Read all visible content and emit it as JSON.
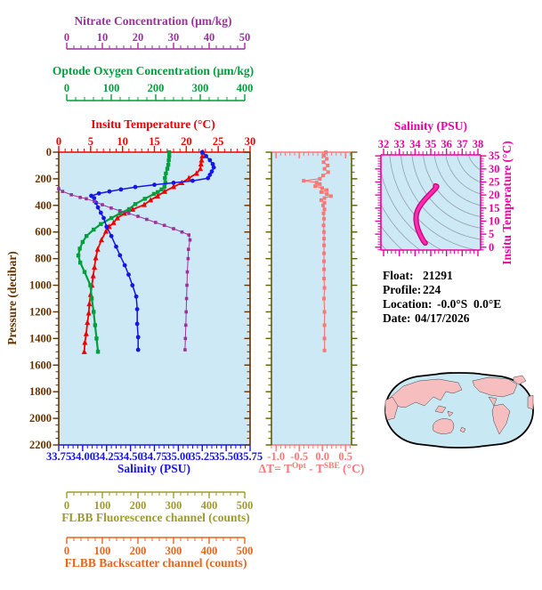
{
  "colors": {
    "nitrate": "#993399",
    "oxygen": "#009E3C",
    "temperature": "#EE0000",
    "pressure": "#663300",
    "salinity": "#1515E6",
    "fluorescence": "#9C9C2E",
    "backscatter": "#E4661E",
    "delta": "#F87878",
    "delta_frame": "#606000",
    "ts": "#EE00A0",
    "ts_curve": "#FF2BB0",
    "ts_curve_edge": "#C8007E",
    "plot_background": "#CDE9F6",
    "contour": "#8FA0A8",
    "map_ocean": "#C8E8F4",
    "map_land": "#F6BEBE",
    "map_outline": "#000000",
    "info_text": "#000000"
  },
  "labels": {
    "nitrate_title": "Nitrate Concentration (μm/kg)",
    "oxygen_title": "Optode Oxygen Concentration (μm/kg)",
    "temperature_title": "Insitu Temperature (°C)",
    "pressure_title": "Pressure (decibar)",
    "salinity_title": "Salinity (PSU)",
    "fluorescence_title": "FLBB Fluorescence channel (counts)",
    "backscatter_title": "FLBB Backscatter channel (counts)",
    "ts_title": "Salinity (PSU)",
    "ts_right_title": "Insitu Temperature (°C)",
    "delta_parts": {
      "p1": "ΔT= T",
      "sup1": "Opt",
      "p2": " - T",
      "sup2": "SBE",
      "p3": " (°C)"
    }
  },
  "info": {
    "float": {
      "label": "Float:",
      "value": "21291"
    },
    "profile": {
      "label": "Profile:",
      "value": "224"
    },
    "location": {
      "label": "Location:",
      "value": "-0.0°S  0.0°E"
    },
    "date": {
      "label": "Date:",
      "value": "04/17/2026"
    }
  },
  "chart_data": [
    {
      "id": "profile-plot",
      "type": "line",
      "y_axis": {
        "label": "Pressure (decibar)",
        "range": [
          0,
          2200
        ],
        "ticks": [
          0,
          200,
          400,
          600,
          800,
          1000,
          1200,
          1400,
          1600,
          1800,
          2000,
          2200
        ],
        "minor_step": 50
      },
      "x_axes": [
        {
          "key": "nitrate",
          "label": "Nitrate Concentration (μm/kg)",
          "range": [
            0,
            50
          ],
          "ticks": [
            "0",
            "10",
            "20",
            "30",
            "40",
            "50"
          ],
          "minor_step": 2,
          "color": "#993399"
        },
        {
          "key": "oxygen",
          "label": "Optode Oxygen Concentration (μm/kg)",
          "range": [
            0,
            400
          ],
          "ticks": [
            "0",
            "100",
            "200",
            "300",
            "400"
          ],
          "minor_step": 20,
          "color": "#009E3C"
        },
        {
          "key": "temperature",
          "label": "Insitu Temperature (°C)",
          "range": [
            0,
            30
          ],
          "ticks": [
            "0",
            "5",
            "10",
            "15",
            "20",
            "25",
            "30"
          ],
          "minor_step": 1,
          "color": "#EE0000"
        },
        {
          "key": "salinity",
          "label": "Salinity (PSU)",
          "range": [
            33.75,
            35.75
          ],
          "ticks": [
            "33.75",
            "34.00",
            "34.25",
            "34.50",
            "34.75",
            "35.00",
            "35.25",
            "35.50",
            "35.75"
          ],
          "minor_step": 0.05,
          "color": "#1515E6"
        },
        {
          "key": "fluorescence",
          "label": "FLBB Fluorescence channel (counts)",
          "range": [
            0,
            500
          ],
          "ticks": [
            "0",
            "100",
            "200",
            "300",
            "400",
            "500"
          ],
          "minor_step": 20,
          "color": "#9C9C2E"
        },
        {
          "key": "backscatter",
          "label": "FLBB Backscatter channel (counts)",
          "range": [
            0,
            500
          ],
          "ticks": [
            "0",
            "100",
            "200",
            "300",
            "400",
            "500"
          ],
          "minor_step": 20,
          "color": "#E4661E"
        }
      ],
      "series": [
        {
          "axis": "temperature",
          "marker": "triangle",
          "points": [
            [
              0,
              22.6
            ],
            [
              30,
              22.5
            ],
            [
              60,
              22.4
            ],
            [
              90,
              22.3
            ],
            [
              125,
              22.2
            ],
            [
              160,
              21.6
            ],
            [
              195,
              20.4
            ],
            [
              230,
              19.3
            ],
            [
              260,
              18.0
            ],
            [
              295,
              16.6
            ],
            [
              330,
              15.5
            ],
            [
              360,
              14.4
            ],
            [
              395,
              13.4
            ],
            [
              430,
              11.6
            ],
            [
              460,
              10.3
            ],
            [
              495,
              9.2
            ],
            [
              530,
              8.6
            ],
            [
              560,
              7.9
            ],
            [
              595,
              7.4
            ],
            [
              660,
              6.7
            ],
            [
              730,
              6.1
            ],
            [
              795,
              5.8
            ],
            [
              865,
              5.6
            ],
            [
              930,
              5.4
            ],
            [
              1000,
              5.2
            ],
            [
              1070,
              5.0
            ],
            [
              1140,
              4.8
            ],
            [
              1210,
              4.7
            ],
            [
              1280,
              4.5
            ],
            [
              1365,
              4.3
            ],
            [
              1430,
              4.1
            ],
            [
              1500,
              4.0
            ]
          ]
        },
        {
          "axis": "oxygen",
          "marker": "square",
          "points": [
            [
              0,
              231
            ],
            [
              30,
              231
            ],
            [
              60,
              230
            ],
            [
              95,
              229
            ],
            [
              125,
              227
            ],
            [
              160,
              224
            ],
            [
              195,
              222
            ],
            [
              230,
              223
            ],
            [
              260,
              221
            ],
            [
              280,
              215
            ],
            [
              300,
              207
            ],
            [
              314,
              199
            ],
            [
              350,
              180
            ],
            [
              390,
              160
            ],
            [
              428,
              147
            ],
            [
              460,
              128
            ],
            [
              495,
              110
            ],
            [
              540,
              88
            ],
            [
              582,
              73
            ],
            [
              630,
              58
            ],
            [
              675,
              50
            ],
            [
              725,
              44
            ],
            [
              776,
              41
            ],
            [
              830,
              45
            ],
            [
              900,
              54
            ],
            [
              1000,
              66
            ],
            [
              1100,
              69
            ],
            [
              1200,
              73
            ],
            [
              1300,
              76
            ],
            [
              1400,
              79
            ],
            [
              1500,
              82
            ]
          ]
        },
        {
          "axis": "salinity",
          "marker": "circle",
          "points": [
            [
              0,
              35.25
            ],
            [
              30,
              35.29
            ],
            [
              60,
              35.33
            ],
            [
              90,
              35.36
            ],
            [
              115,
              35.37
            ],
            [
              145,
              35.35
            ],
            [
              170,
              35.33
            ],
            [
              195,
              35.31
            ],
            [
              215,
              35.15
            ],
            [
              230,
              34.95
            ],
            [
              245,
              34.75
            ],
            [
              262,
              34.55
            ],
            [
              280,
              34.4
            ],
            [
              295,
              34.28
            ],
            [
              310,
              34.17
            ],
            [
              328,
              34.09
            ],
            [
              345,
              34.12
            ],
            [
              380,
              34.14
            ],
            [
              415,
              34.16
            ],
            [
              455,
              34.19
            ],
            [
              495,
              34.22
            ],
            [
              560,
              34.25
            ],
            [
              630,
              34.3
            ],
            [
              710,
              34.35
            ],
            [
              775,
              34.39
            ],
            [
              850,
              34.44
            ],
            [
              920,
              34.48
            ],
            [
              1000,
              34.52
            ],
            [
              1085,
              34.56
            ],
            [
              1180,
              34.57
            ],
            [
              1290,
              34.57
            ],
            [
              1390,
              34.58
            ],
            [
              1485,
              34.58
            ]
          ]
        },
        {
          "axis": "nitrate",
          "marker": "square",
          "points": [
            [
              275,
              0
            ],
            [
              295,
              1
            ],
            [
              320,
              3.3
            ],
            [
              340,
              5.6
            ],
            [
              350,
              7.2
            ],
            [
              370,
              9.3
            ],
            [
              395,
              11.4
            ],
            [
              420,
              13.7
            ],
            [
              440,
              16
            ],
            [
              460,
              18.3
            ],
            [
              482,
              20.7
            ],
            [
              505,
              23
            ],
            [
              528,
              25.3
            ],
            [
              550,
              27.6
            ],
            [
              575,
              30
            ],
            [
              600,
              32.2
            ],
            [
              622,
              34
            ],
            [
              660,
              34.3
            ],
            [
              730,
              33.9
            ],
            [
              800,
              33.8
            ],
            [
              900,
              33.6
            ],
            [
              1000,
              33.5
            ],
            [
              1100,
              33.4
            ],
            [
              1200,
              33.3
            ],
            [
              1300,
              33.2
            ],
            [
              1400,
              33.1
            ],
            [
              1485,
              33.0
            ]
          ]
        }
      ]
    },
    {
      "id": "delta-plot",
      "type": "line",
      "x_axis": {
        "label": "ΔT= T^Opt - T^SBE (°C)",
        "range": [
          -1.1,
          0.63
        ],
        "ticks": [
          "-1.0",
          "-0.5",
          "0.0",
          "0.5"
        ],
        "minor_step": 0.1,
        "color": "#F87878"
      },
      "y_axis": {
        "label": "",
        "range": [
          0,
          2200
        ],
        "minor_step": 50,
        "major_step": 200,
        "color": "#606000"
      },
      "series": [
        {
          "marker": "square",
          "color": "#F87878",
          "points": [
            [
              0,
              0.08
            ],
            [
              25,
              0.04
            ],
            [
              50,
              0.1
            ],
            [
              75,
              0.03
            ],
            [
              100,
              0.12
            ],
            [
              125,
              0.05
            ],
            [
              150,
              0.13
            ],
            [
              175,
              0.02
            ],
            [
              200,
              -0.05
            ],
            [
              215,
              -0.4
            ],
            [
              228,
              -0.12
            ],
            [
              240,
              -0.05
            ],
            [
              255,
              -0.15
            ],
            [
              270,
              0.0
            ],
            [
              285,
              0.1
            ],
            [
              300,
              -0.02
            ],
            [
              315,
              0.1
            ],
            [
              330,
              0.19
            ],
            [
              345,
              0.05
            ],
            [
              360,
              -0.02
            ],
            [
              380,
              0.05
            ],
            [
              400,
              0.02
            ],
            [
              430,
              0.05
            ],
            [
              460,
              0.03
            ],
            [
              500,
              0.04
            ],
            [
              550,
              0.03
            ],
            [
              600,
              0.04
            ],
            [
              650,
              0.04
            ],
            [
              700,
              0.04
            ],
            [
              760,
              0.04
            ],
            [
              820,
              0.04
            ],
            [
              880,
              0.04
            ],
            [
              950,
              0.04
            ],
            [
              1020,
              0.05
            ],
            [
              1100,
              0.04
            ],
            [
              1200,
              0.05
            ],
            [
              1300,
              0.05
            ],
            [
              1400,
              0.05
            ],
            [
              1490,
              0.05
            ]
          ]
        }
      ]
    },
    {
      "id": "ts-plot",
      "type": "line",
      "x_axis": {
        "label": "Salinity (PSU)",
        "range": [
          31.83,
          38.17
        ],
        "ticks": [
          "32",
          "33",
          "34",
          "35",
          "36",
          "37",
          "38"
        ],
        "minor_step": 0.25,
        "color": "#EE00A0"
      },
      "y_axis": {
        "label": "Insitu Temperature (°C)",
        "range": [
          -1.1,
          35.4
        ],
        "ticks": [
          "0",
          "5",
          "10",
          "15",
          "20",
          "25",
          "30",
          "35"
        ],
        "minor_step": 1,
        "color": "#EE00A0"
      },
      "background": "isopycnal-contours",
      "series": [
        {
          "name": "T-S curve",
          "color": "#FF2BB0",
          "points": [
            [
              34.65,
              1.6
            ],
            [
              34.52,
              2.6
            ],
            [
              34.4,
              3.9
            ],
            [
              34.28,
              5.4
            ],
            [
              34.18,
              7.0
            ],
            [
              34.1,
              8.8
            ],
            [
              34.06,
              10.6
            ],
            [
              34.08,
              12.4
            ],
            [
              34.16,
              14.1
            ],
            [
              34.3,
              15.7
            ],
            [
              34.48,
              17.2
            ],
            [
              34.68,
              18.6
            ],
            [
              34.88,
              19.9
            ],
            [
              35.06,
              21.0
            ],
            [
              35.2,
              21.9
            ],
            [
              35.32,
              22.7
            ],
            [
              35.38,
              23.3
            ],
            [
              35.3,
              23.5
            ]
          ]
        }
      ]
    }
  ]
}
